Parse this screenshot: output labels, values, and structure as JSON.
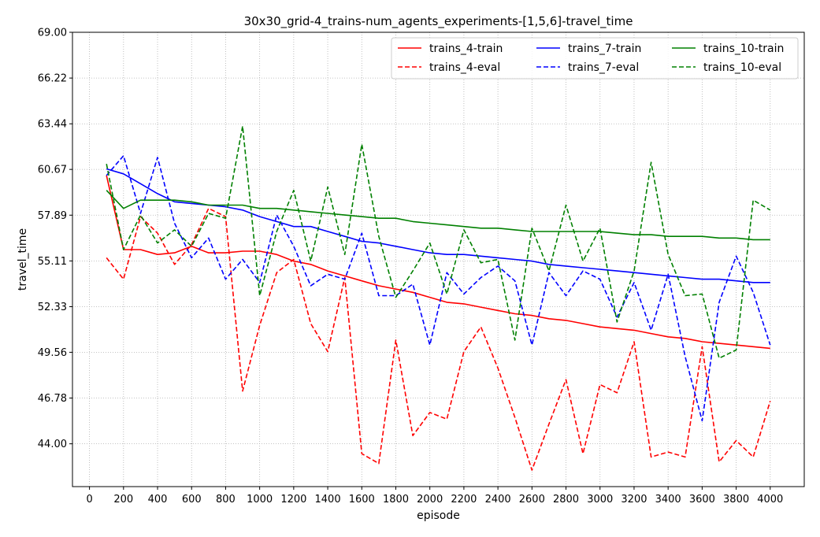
{
  "chart_data": {
    "type": "line",
    "title": "30x30_grid-4_trains-num_agents_experiments-[1,5,6]-travel_time",
    "xlabel": "episode",
    "ylabel": "travel_time",
    "xlim": [
      -100,
      4200
    ],
    "ylim": [
      41.4,
      69.0
    ],
    "x_ticks": [
      0,
      200,
      400,
      600,
      800,
      1000,
      1200,
      1400,
      1600,
      1800,
      2000,
      2200,
      2400,
      2600,
      2800,
      3000,
      3200,
      3400,
      3600,
      3800,
      4000
    ],
    "x_tick_labels": [
      "0",
      "200",
      "400",
      "600",
      "800",
      "1000",
      "1200",
      "1400",
      "1600",
      "1800",
      "2000",
      "2200",
      "2400",
      "2600",
      "2800",
      "3000",
      "3200",
      "3400",
      "3600",
      "3800",
      "4000"
    ],
    "y_ticks": [
      44.0,
      46.78,
      49.56,
      52.33,
      55.11,
      57.89,
      60.67,
      63.44,
      66.22,
      69.0
    ],
    "y_tick_labels": [
      "44.00",
      "46.78",
      "49.56",
      "52.33",
      "55.11",
      "57.89",
      "60.67",
      "63.44",
      "66.22",
      "69.00"
    ],
    "grid": true,
    "legend_position": "top-right",
    "legend_columns": 3,
    "x": [
      100,
      200,
      300,
      400,
      500,
      600,
      700,
      800,
      900,
      1000,
      1100,
      1200,
      1300,
      1400,
      1500,
      1600,
      1700,
      1800,
      1900,
      2000,
      2100,
      2200,
      2300,
      2400,
      2500,
      2600,
      2700,
      2800,
      2900,
      3000,
      3100,
      3200,
      3300,
      3400,
      3500,
      3600,
      3700,
      3800,
      3900,
      4000
    ],
    "series": [
      {
        "name": "trains_4-train",
        "color": "#ff0000",
        "dash": "solid",
        "values": [
          60.3,
          55.8,
          55.8,
          55.5,
          55.6,
          56.0,
          55.6,
          55.6,
          55.7,
          55.7,
          55.5,
          55.1,
          54.9,
          54.5,
          54.2,
          53.9,
          53.6,
          53.4,
          53.2,
          52.9,
          52.6,
          52.5,
          52.3,
          52.1,
          51.9,
          51.8,
          51.6,
          51.5,
          51.3,
          51.1,
          51.0,
          50.9,
          50.7,
          50.5,
          50.4,
          50.2,
          50.1,
          50.0,
          49.9,
          49.8
        ]
      },
      {
        "name": "trains_4-eval",
        "color": "#ff0000",
        "dash": "dashed",
        "values": [
          55.3,
          54.0,
          57.8,
          56.8,
          54.9,
          56.1,
          58.3,
          57.8,
          47.2,
          51.2,
          54.4,
          55.2,
          51.3,
          49.6,
          54.1,
          43.4,
          42.8,
          50.3,
          44.5,
          45.9,
          45.5,
          49.6,
          51.1,
          48.6,
          45.6,
          42.4,
          45.2,
          47.9,
          43.4,
          47.6,
          47.1,
          50.2,
          43.2,
          43.5,
          43.2,
          49.9,
          42.9,
          44.2,
          43.2,
          46.6
        ]
      },
      {
        "name": "trains_7-train",
        "color": "#0000ff",
        "dash": "solid",
        "values": [
          60.7,
          60.4,
          59.8,
          59.2,
          58.7,
          58.6,
          58.5,
          58.4,
          58.2,
          57.8,
          57.5,
          57.2,
          57.2,
          56.9,
          56.6,
          56.3,
          56.2,
          56.0,
          55.8,
          55.6,
          55.5,
          55.5,
          55.4,
          55.3,
          55.2,
          55.1,
          54.9,
          54.8,
          54.7,
          54.6,
          54.5,
          54.4,
          54.3,
          54.2,
          54.1,
          54.0,
          54.0,
          53.9,
          53.8,
          53.8
        ]
      },
      {
        "name": "trains_7-eval",
        "color": "#0000ff",
        "dash": "dashed",
        "values": [
          60.3,
          61.5,
          58.0,
          61.4,
          57.4,
          55.3,
          56.5,
          54.0,
          55.2,
          53.8,
          57.9,
          56.0,
          53.6,
          54.3,
          54.0,
          56.8,
          53.0,
          53.0,
          53.7,
          50.0,
          54.4,
          53.1,
          54.1,
          54.8,
          53.9,
          50.0,
          54.4,
          53.0,
          54.5,
          54.0,
          51.7,
          53.8,
          50.9,
          54.3,
          49.3,
          45.4,
          52.6,
          55.4,
          53.2,
          50.0
        ]
      },
      {
        "name": "trains_10-train",
        "color": "#008000",
        "dash": "solid",
        "values": [
          59.4,
          58.3,
          58.8,
          58.8,
          58.8,
          58.7,
          58.5,
          58.5,
          58.5,
          58.3,
          58.3,
          58.2,
          58.1,
          58.0,
          57.9,
          57.8,
          57.7,
          57.7,
          57.5,
          57.4,
          57.3,
          57.2,
          57.1,
          57.1,
          57.0,
          56.9,
          56.9,
          56.9,
          56.9,
          56.9,
          56.8,
          56.7,
          56.7,
          56.6,
          56.6,
          56.6,
          56.5,
          56.5,
          56.4,
          56.4
        ]
      },
      {
        "name": "trains_10-eval",
        "color": "#008000",
        "dash": "dashed",
        "values": [
          61.0,
          55.8,
          57.9,
          56.2,
          57.0,
          56.0,
          58.0,
          57.7,
          63.3,
          53.0,
          56.9,
          59.4,
          55.1,
          59.6,
          55.5,
          62.2,
          56.6,
          52.9,
          54.5,
          56.2,
          53.1,
          57.0,
          55.0,
          55.2,
          50.3,
          57.1,
          54.5,
          58.5,
          55.1,
          57.1,
          51.4,
          54.5,
          61.1,
          55.5,
          53.0,
          53.1,
          49.2,
          49.7,
          58.8,
          58.2
        ]
      }
    ]
  }
}
